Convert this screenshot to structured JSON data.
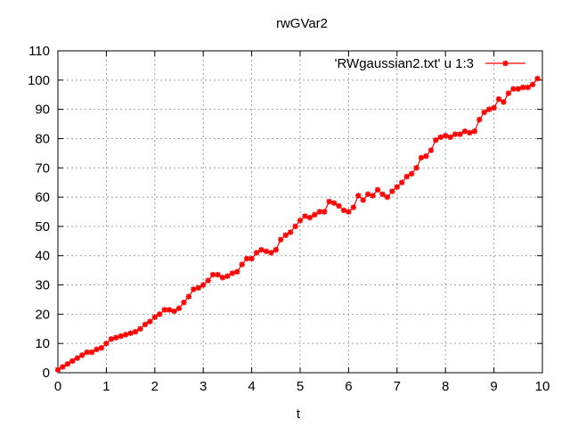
{
  "chart_data": {
    "type": "line",
    "title": "rwGVar2",
    "xlabel": "t",
    "ylabel": "",
    "xlim": [
      0,
      10
    ],
    "ylim": [
      0,
      110
    ],
    "xticks": [
      0,
      1,
      2,
      3,
      4,
      5,
      6,
      7,
      8,
      9,
      10
    ],
    "yticks": [
      0,
      10,
      20,
      30,
      40,
      50,
      60,
      70,
      80,
      90,
      100,
      110
    ],
    "grid": true,
    "legend_position": "top-right",
    "series": [
      {
        "name": "'RWgaussian2.txt' u 1:3",
        "color": "#ff0000",
        "marker": "plus-cross",
        "x": [
          0,
          0.1,
          0.2,
          0.3,
          0.4,
          0.5,
          0.6,
          0.7,
          0.8,
          0.9,
          1.0,
          1.1,
          1.2,
          1.3,
          1.4,
          1.5,
          1.6,
          1.7,
          1.8,
          1.9,
          2.0,
          2.1,
          2.2,
          2.3,
          2.4,
          2.5,
          2.6,
          2.7,
          2.8,
          2.9,
          3.0,
          3.1,
          3.2,
          3.3,
          3.4,
          3.5,
          3.6,
          3.7,
          3.8,
          3.9,
          4.0,
          4.1,
          4.2,
          4.3,
          4.4,
          4.5,
          4.6,
          4.7,
          4.8,
          4.9,
          5.0,
          5.1,
          5.2,
          5.3,
          5.4,
          5.5,
          5.6,
          5.7,
          5.8,
          5.9,
          6.0,
          6.1,
          6.2,
          6.3,
          6.4,
          6.5,
          6.6,
          6.7,
          6.8,
          6.9,
          7.0,
          7.1,
          7.2,
          7.3,
          7.4,
          7.5,
          7.6,
          7.7,
          7.8,
          7.9,
          8.0,
          8.1,
          8.2,
          8.3,
          8.4,
          8.5,
          8.6,
          8.7,
          8.8,
          8.9,
          9.0,
          9.1,
          9.2,
          9.3,
          9.4,
          9.5,
          9.6,
          9.7,
          9.8,
          9.9
        ],
        "values": [
          1,
          2,
          3,
          4,
          5,
          6,
          7,
          7,
          8,
          8.5,
          10,
          11.5,
          12,
          12.5,
          13,
          13.5,
          14,
          15,
          16.5,
          17.5,
          19,
          20,
          21.5,
          21.5,
          21,
          22,
          24,
          26,
          28.5,
          29,
          30,
          31.5,
          33.5,
          33.5,
          32.5,
          33,
          34,
          34.5,
          37,
          39,
          39,
          41,
          42,
          41.5,
          41,
          42,
          45.5,
          47,
          48,
          50,
          52,
          53.5,
          53,
          54,
          55,
          55,
          58.5,
          58,
          57,
          55.5,
          55,
          56.5,
          60.5,
          59,
          61,
          60.5,
          62.5,
          61,
          60,
          62,
          63.5,
          65,
          67,
          68,
          70,
          73.5,
          74,
          76,
          79.5,
          80.5,
          81,
          80.5,
          81.5,
          81.5,
          82.5,
          82,
          82.5,
          86.5,
          89,
          90,
          90.5,
          93.5,
          92.5,
          95.5,
          97,
          97,
          97.5,
          97.5,
          98.5,
          100.5
        ]
      }
    ]
  }
}
